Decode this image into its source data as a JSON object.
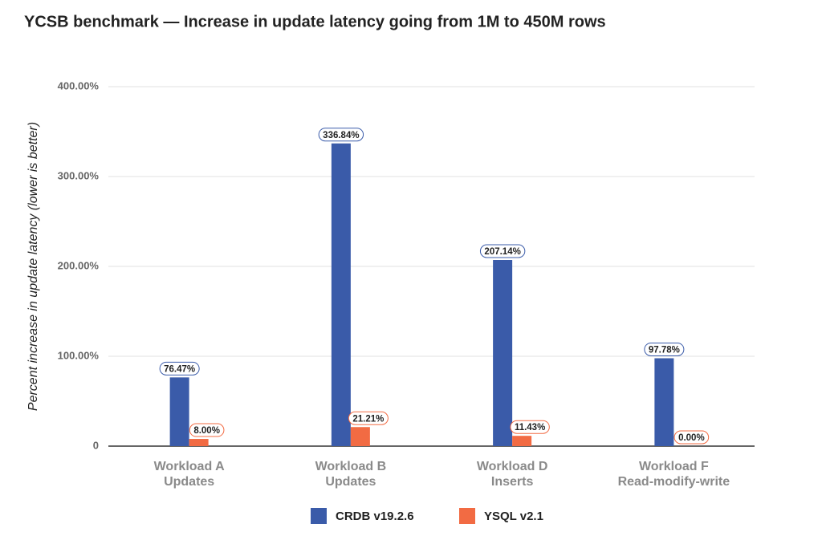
{
  "chart_data": {
    "type": "bar",
    "title": "YCSB benchmark — Increase in update latency going from 1M to 450M rows",
    "y_label": "Percent increase in update latency  (lower is better)",
    "categories": [
      [
        "Workload A",
        "Updates"
      ],
      [
        "Workload B",
        "Updates"
      ],
      [
        "Workload D",
        "Inserts"
      ],
      [
        "Workload F",
        "Read-modify-write"
      ]
    ],
    "series": [
      {
        "name": "CRDB v19.2.6",
        "color": "#3a5ba9",
        "values": [
          76.47,
          336.84,
          207.14,
          97.78
        ],
        "value_labels": [
          "76.47%",
          "336.84%",
          "207.14%",
          "97.78%"
        ]
      },
      {
        "name": "YSQL v2.1",
        "color": "#f26b43",
        "values": [
          8.0,
          21.21,
          11.43,
          0.0
        ],
        "value_labels": [
          "8.00%",
          "21.21%",
          "11.43%",
          "0.00%"
        ]
      }
    ],
    "ylim": [
      0,
      400
    ],
    "yticks": [
      0,
      {
        "value": 100,
        "label": "100.00%"
      },
      {
        "value": 200,
        "label": "200.00%"
      },
      {
        "value": 300,
        "label": "300.00%"
      },
      {
        "value": 400,
        "label": "400.00%"
      }
    ],
    "grid": true
  }
}
